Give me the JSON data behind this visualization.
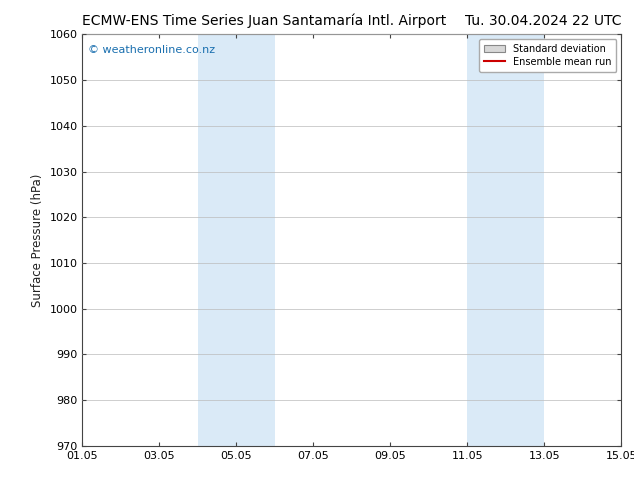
{
  "title_left": "ECMW-ENS Time Series Juan Santamaría Intl. Airport",
  "title_right": "Tu. 30.04.2024 22 UTC",
  "ylabel": "Surface Pressure (hPa)",
  "ylim": [
    970,
    1060
  ],
  "yticks": [
    970,
    980,
    990,
    1000,
    1010,
    1020,
    1030,
    1040,
    1050,
    1060
  ],
  "xlim_start": 0.0,
  "xlim_end": 14.0,
  "xtick_positions": [
    0,
    2,
    4,
    6,
    8,
    10,
    12,
    14
  ],
  "xtick_labels": [
    "01.05",
    "03.05",
    "05.05",
    "07.05",
    "09.05",
    "11.05",
    "13.05",
    "15.05"
  ],
  "shaded_regions": [
    {
      "x_start": 3.0,
      "x_end": 5.0,
      "color": "#daeaf7"
    },
    {
      "x_start": 10.0,
      "x_end": 12.0,
      "color": "#daeaf7"
    }
  ],
  "watermark_text": "© weatheronline.co.nz",
  "watermark_color": "#1a6faf",
  "background_color": "#ffffff",
  "legend_std_dev_facecolor": "#d8d8d8",
  "legend_std_dev_edgecolor": "#888888",
  "legend_mean_run_color": "#cc0000",
  "title_fontsize": 10,
  "ylabel_fontsize": 8.5,
  "tick_fontsize": 8,
  "watermark_fontsize": 8,
  "grid_color": "#bbbbbb",
  "border_color": "#444444",
  "tick_color": "#444444"
}
